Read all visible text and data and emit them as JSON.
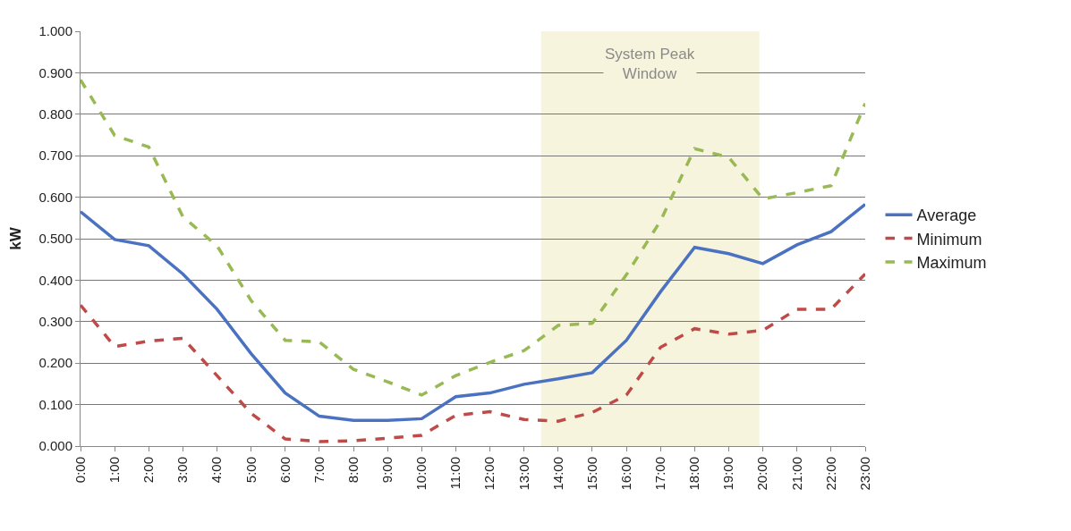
{
  "chart_data": {
    "type": "line",
    "ylabel": "kW",
    "x": [
      0,
      1,
      2,
      3,
      4,
      5,
      6,
      7,
      8,
      9,
      10,
      11,
      12,
      13,
      14,
      15,
      16,
      17,
      18,
      19,
      20,
      21,
      22,
      23
    ],
    "xlim": [
      0,
      23
    ],
    "xticks": [
      {
        "value": 0,
        "label": "0:00"
      },
      {
        "value": 1,
        "label": "1:00"
      },
      {
        "value": 2,
        "label": "2:00"
      },
      {
        "value": 3,
        "label": "3:00"
      },
      {
        "value": 4,
        "label": "4:00"
      },
      {
        "value": 5,
        "label": "5:00"
      },
      {
        "value": 6,
        "label": "6:00"
      },
      {
        "value": 7,
        "label": "7:00"
      },
      {
        "value": 8,
        "label": "8:00"
      },
      {
        "value": 9,
        "label": "9:00"
      },
      {
        "value": 10,
        "label": "10:00"
      },
      {
        "value": 11,
        "label": "11:00"
      },
      {
        "value": 12,
        "label": "12:00"
      },
      {
        "value": 13,
        "label": "13:00"
      },
      {
        "value": 14,
        "label": "14:00"
      },
      {
        "value": 15,
        "label": "15:00"
      },
      {
        "value": 16,
        "label": "16:00"
      },
      {
        "value": 17,
        "label": "17:00"
      },
      {
        "value": 18,
        "label": "18:00"
      },
      {
        "value": 19,
        "label": "19:00"
      },
      {
        "value": 20,
        "label": "20:00"
      },
      {
        "value": 21,
        "label": "21:00"
      },
      {
        "value": 22,
        "label": "22:00"
      },
      {
        "value": 23,
        "label": "23:00"
      }
    ],
    "ylim": [
      0,
      1
    ],
    "yticks": [
      {
        "value": 0,
        "label": "0.000"
      },
      {
        "value": 0.1,
        "label": "0.100"
      },
      {
        "value": 0.2,
        "label": "0.200"
      },
      {
        "value": 0.3,
        "label": "0.300"
      },
      {
        "value": 0.4,
        "label": "0.400"
      },
      {
        "value": 0.5,
        "label": "0.500"
      },
      {
        "value": 0.6,
        "label": "0.600"
      },
      {
        "value": 0.7,
        "label": "0.700"
      },
      {
        "value": 0.8,
        "label": "0.800"
      },
      {
        "value": 0.9,
        "label": "0.900"
      },
      {
        "value": 1,
        "label": "1.000"
      }
    ],
    "grid": "y",
    "legend": "right",
    "marker": "none",
    "series": [
      {
        "name": "Average",
        "color": "#4a72c0",
        "line_style": "solid",
        "values": [
          0.565,
          0.498,
          0.483,
          0.415,
          0.33,
          0.223,
          0.128,
          0.072,
          0.062,
          0.062,
          0.066,
          0.119,
          0.128,
          0.149,
          0.162,
          0.177,
          0.255,
          0.372,
          0.479,
          0.464,
          0.44,
          0.485,
          0.517,
          0.583
        ]
      },
      {
        "name": "Minimum",
        "color": "#be4b48",
        "line_style": "dashed",
        "values": [
          0.34,
          0.24,
          0.253,
          0.26,
          0.17,
          0.079,
          0.017,
          0.011,
          0.013,
          0.019,
          0.026,
          0.074,
          0.083,
          0.064,
          0.06,
          0.081,
          0.123,
          0.238,
          0.283,
          0.27,
          0.279,
          0.33,
          0.33,
          0.415
        ]
      },
      {
        "name": "Maximum",
        "color": "#98b954",
        "line_style": "dashed",
        "values": [
          0.883,
          0.749,
          0.721,
          0.553,
          0.483,
          0.351,
          0.255,
          0.251,
          0.185,
          0.155,
          0.123,
          0.17,
          0.202,
          0.23,
          0.291,
          0.296,
          0.413,
          0.543,
          0.717,
          0.696,
          0.596,
          0.611,
          0.628,
          0.826
        ]
      }
    ],
    "bands": [
      {
        "axis": "x",
        "from": 13.5,
        "to": 19.9,
        "label": "System Peak Window",
        "color": "#f7f4dd"
      }
    ]
  }
}
